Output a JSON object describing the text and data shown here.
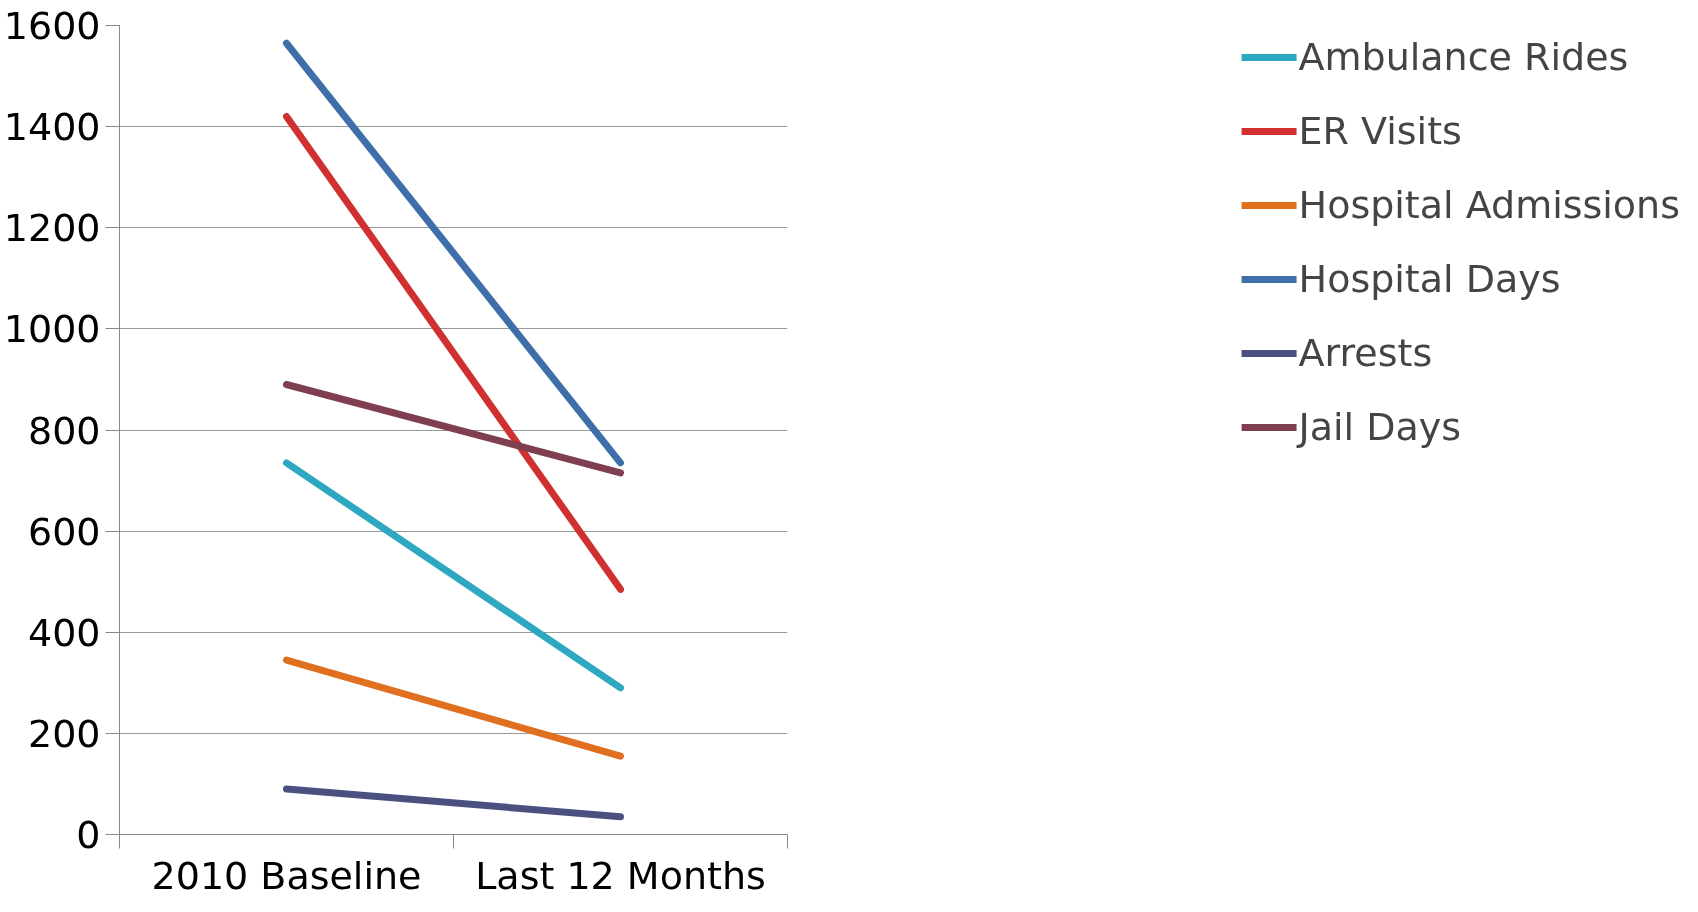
{
  "chart_data": {
    "type": "line",
    "categories": [
      "2010 Baseline",
      "Last 12 Months"
    ],
    "series": [
      {
        "name": "Ambulance Rides",
        "color": "#2ea8c0",
        "values": [
          735,
          290
        ]
      },
      {
        "name": "ER Visits",
        "color": "#d03030",
        "values": [
          1420,
          485
        ]
      },
      {
        "name": "Hospital Admissions",
        "color": "#e07020",
        "values": [
          345,
          155
        ]
      },
      {
        "name": "Hospital Days",
        "color": "#3f6fa8",
        "values": [
          1565,
          735
        ]
      },
      {
        "name": "Arrests",
        "color": "#4a5080",
        "values": [
          90,
          35
        ]
      },
      {
        "name": "Jail Days",
        "color": "#7f3f50",
        "values": [
          890,
          715
        ]
      }
    ],
    "ylim": [
      0,
      1600
    ],
    "yticks": [
      0,
      200,
      400,
      600,
      800,
      1000,
      1200,
      1400,
      1600
    ],
    "grid": "y",
    "legend": "right",
    "marker": "none",
    "line_style": "solid"
  }
}
